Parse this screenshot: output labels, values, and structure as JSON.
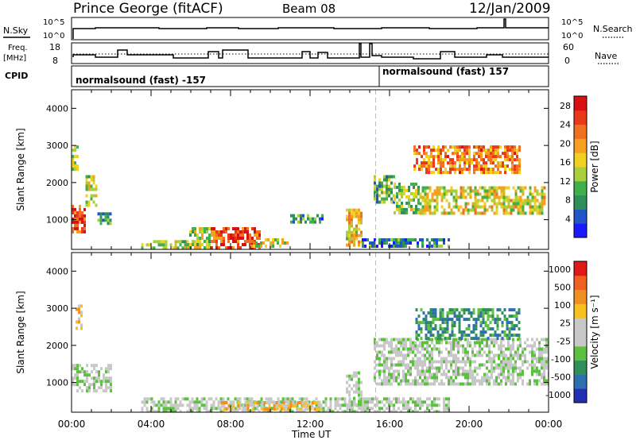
{
  "header": {
    "station": "Prince George (fitACF)",
    "beam": "Beam 08",
    "date": "12/Jan/2009"
  },
  "colors": {
    "power_scale": [
      "#1a1aff",
      "#2255c8",
      "#2f8f5a",
      "#3fb04a",
      "#a8d03a",
      "#f0d020",
      "#f6a020",
      "#f07020",
      "#e83a1a",
      "#d81010"
    ],
    "velocity_scale": [
      "#2030b0",
      "#2f6fb0",
      "#2f8f5a",
      "#5cc040",
      "#c8c8c8",
      "#c8c8c8",
      "#f6c020",
      "#f09020",
      "#f06020",
      "#e01818"
    ]
  },
  "labels": {
    "nsky": "N.Sky",
    "nsky_ticks": [
      "10^5",
      "10^0"
    ],
    "nsearch": "N.Search",
    "nsearch_ticks": [
      "10^5",
      "10^0"
    ],
    "freq": "Freq.",
    "freq_unit": "[MHz]",
    "freq_ticks": [
      "18",
      "8"
    ],
    "nave": "Nave",
    "nave_ticks": [
      "60",
      "0"
    ],
    "cpid": "CPID",
    "cpid_left": "normalsound (fast) -157",
    "cpid_right": "normalsound (fast) 157"
  },
  "chart_data": [
    {
      "type": "heatmap",
      "name": "power",
      "ylabel": "Slant Range [km]",
      "xlabel": "",
      "xlim": [
        "00:00",
        "24:00"
      ],
      "ylim": [
        200,
        4500
      ],
      "yticks": [
        1000,
        2000,
        3000,
        4000
      ],
      "colorbar_label": "Power [dB]",
      "colorbar_ticks": [
        4,
        8,
        12,
        16,
        20,
        24,
        28
      ],
      "colorbar_range": [
        0,
        30
      ],
      "regions": [
        {
          "t": [
            0.0,
            0.7
          ],
          "r": [
            700,
            1400
          ],
          "level": 26
        },
        {
          "t": [
            0.7,
            1.3
          ],
          "r": [
            1400,
            2200
          ],
          "level": 14
        },
        {
          "t": [
            1.3,
            2.0
          ],
          "r": [
            900,
            1200
          ],
          "level": 8
        },
        {
          "t": [
            0.0,
            0.3
          ],
          "r": [
            2400,
            3000
          ],
          "level": 14
        },
        {
          "t": [
            3.5,
            6.2
          ],
          "r": [
            250,
            450
          ],
          "level": 12
        },
        {
          "t": [
            5.8,
            7.0
          ],
          "r": [
            250,
            800
          ],
          "level": 14
        },
        {
          "t": [
            7.0,
            9.5
          ],
          "r": [
            250,
            800
          ],
          "level": 26
        },
        {
          "t": [
            9.0,
            11.0
          ],
          "r": [
            300,
            500
          ],
          "level": 16
        },
        {
          "t": [
            11.0,
            12.8
          ],
          "r": [
            900,
            1150
          ],
          "level": 8
        },
        {
          "t": [
            13.8,
            14.6
          ],
          "r": [
            300,
            1300
          ],
          "level": 18
        },
        {
          "t": [
            15.2,
            16.2
          ],
          "r": [
            1500,
            2200
          ],
          "level": 10
        },
        {
          "t": [
            16.2,
            17.5
          ],
          "r": [
            1200,
            2000
          ],
          "level": 12
        },
        {
          "t": [
            17.5,
            23.8
          ],
          "r": [
            1200,
            1900
          ],
          "level": 16
        },
        {
          "t": [
            17.2,
            22.5
          ],
          "r": [
            2300,
            3000
          ],
          "level": 22
        },
        {
          "t": [
            14.6,
            19.0
          ],
          "r": [
            250,
            500
          ],
          "level": 6
        }
      ]
    },
    {
      "type": "heatmap",
      "name": "velocity",
      "ylabel": "Slant Range [km]",
      "xlabel": "Time UT",
      "xlim": [
        "00:00",
        "24:00"
      ],
      "ylim": [
        200,
        4500
      ],
      "yticks": [
        1000,
        2000,
        3000,
        4000
      ],
      "xticks": [
        "00:00",
        "04:00",
        "08:00",
        "12:00",
        "16:00",
        "20:00",
        "00:00"
      ],
      "colorbar_label": "Velocity [m s⁻¹]",
      "colorbar_ticks": [
        "1000",
        "500",
        "100",
        "25",
        "-25",
        "-100",
        "-500",
        "-1000"
      ],
      "regions": [
        {
          "t": [
            0.0,
            2.0
          ],
          "r": [
            800,
            1500
          ],
          "level": 4
        },
        {
          "t": [
            0.2,
            0.5
          ],
          "r": [
            2500,
            3100
          ],
          "level": 6
        },
        {
          "t": [
            3.5,
            14.6
          ],
          "r": [
            250,
            600
          ],
          "level": 4
        },
        {
          "t": [
            7.5,
            12.5
          ],
          "r": [
            250,
            500
          ],
          "level": 6
        },
        {
          "t": [
            13.8,
            14.6
          ],
          "r": [
            300,
            1300
          ],
          "level": 4
        },
        {
          "t": [
            15.2,
            24.0
          ],
          "r": [
            1000,
            2200
          ],
          "level": 4
        },
        {
          "t": [
            17.3,
            22.5
          ],
          "r": [
            2200,
            3000
          ],
          "level": 2
        },
        {
          "t": [
            14.6,
            19.0
          ],
          "r": [
            250,
            600
          ],
          "level": 4
        }
      ]
    }
  ]
}
